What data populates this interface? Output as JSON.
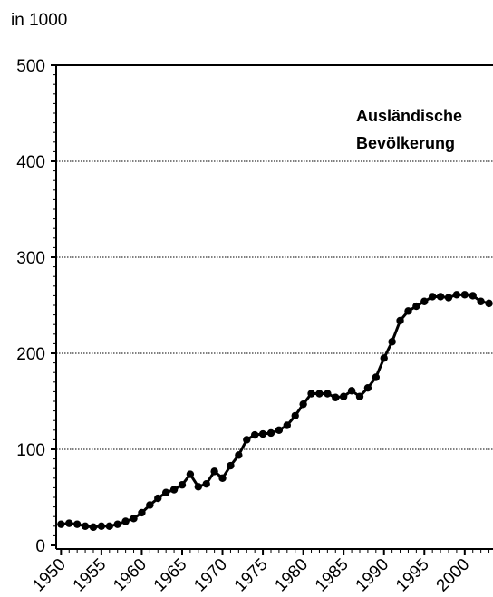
{
  "chart_data": {
    "type": "line",
    "ylabel": "in 1000",
    "annotation": [
      "Ausländische",
      "Bevölkerung"
    ],
    "x": [
      1950,
      1951,
      1952,
      1953,
      1954,
      1955,
      1956,
      1957,
      1958,
      1959,
      1960,
      1961,
      1962,
      1963,
      1964,
      1965,
      1966,
      1967,
      1968,
      1969,
      1970,
      1971,
      1972,
      1973,
      1974,
      1975,
      1976,
      1977,
      1978,
      1979,
      1980,
      1981,
      1982,
      1983,
      1984,
      1985,
      1986,
      1987,
      1988,
      1989,
      1990,
      1991,
      1992,
      1993,
      1994,
      1995,
      1996,
      1997,
      1998,
      1999,
      2000,
      2001,
      2002,
      2003
    ],
    "series": [
      {
        "color": "#000000",
        "values": [
          22,
          23,
          22,
          20,
          19,
          20,
          20,
          22,
          25,
          28,
          34,
          42,
          49,
          55,
          58,
          63,
          74,
          61,
          64,
          77,
          70,
          83,
          94,
          110,
          115,
          116,
          117,
          120,
          125,
          135,
          147,
          158,
          158,
          158,
          154,
          155,
          161,
          155,
          164,
          175,
          195,
          212,
          234,
          244,
          249,
          254,
          259,
          259,
          258,
          261,
          261,
          260,
          254,
          252
        ]
      }
    ],
    "xlim": [
      1949.4,
      2003.5
    ],
    "xticks": [
      1950,
      1955,
      1960,
      1965,
      1970,
      1975,
      1980,
      1985,
      1990,
      1995,
      2000
    ],
    "ylim": [
      0,
      500
    ],
    "yticks": [
      0,
      100,
      200,
      300,
      400,
      500
    ],
    "grid": true
  }
}
